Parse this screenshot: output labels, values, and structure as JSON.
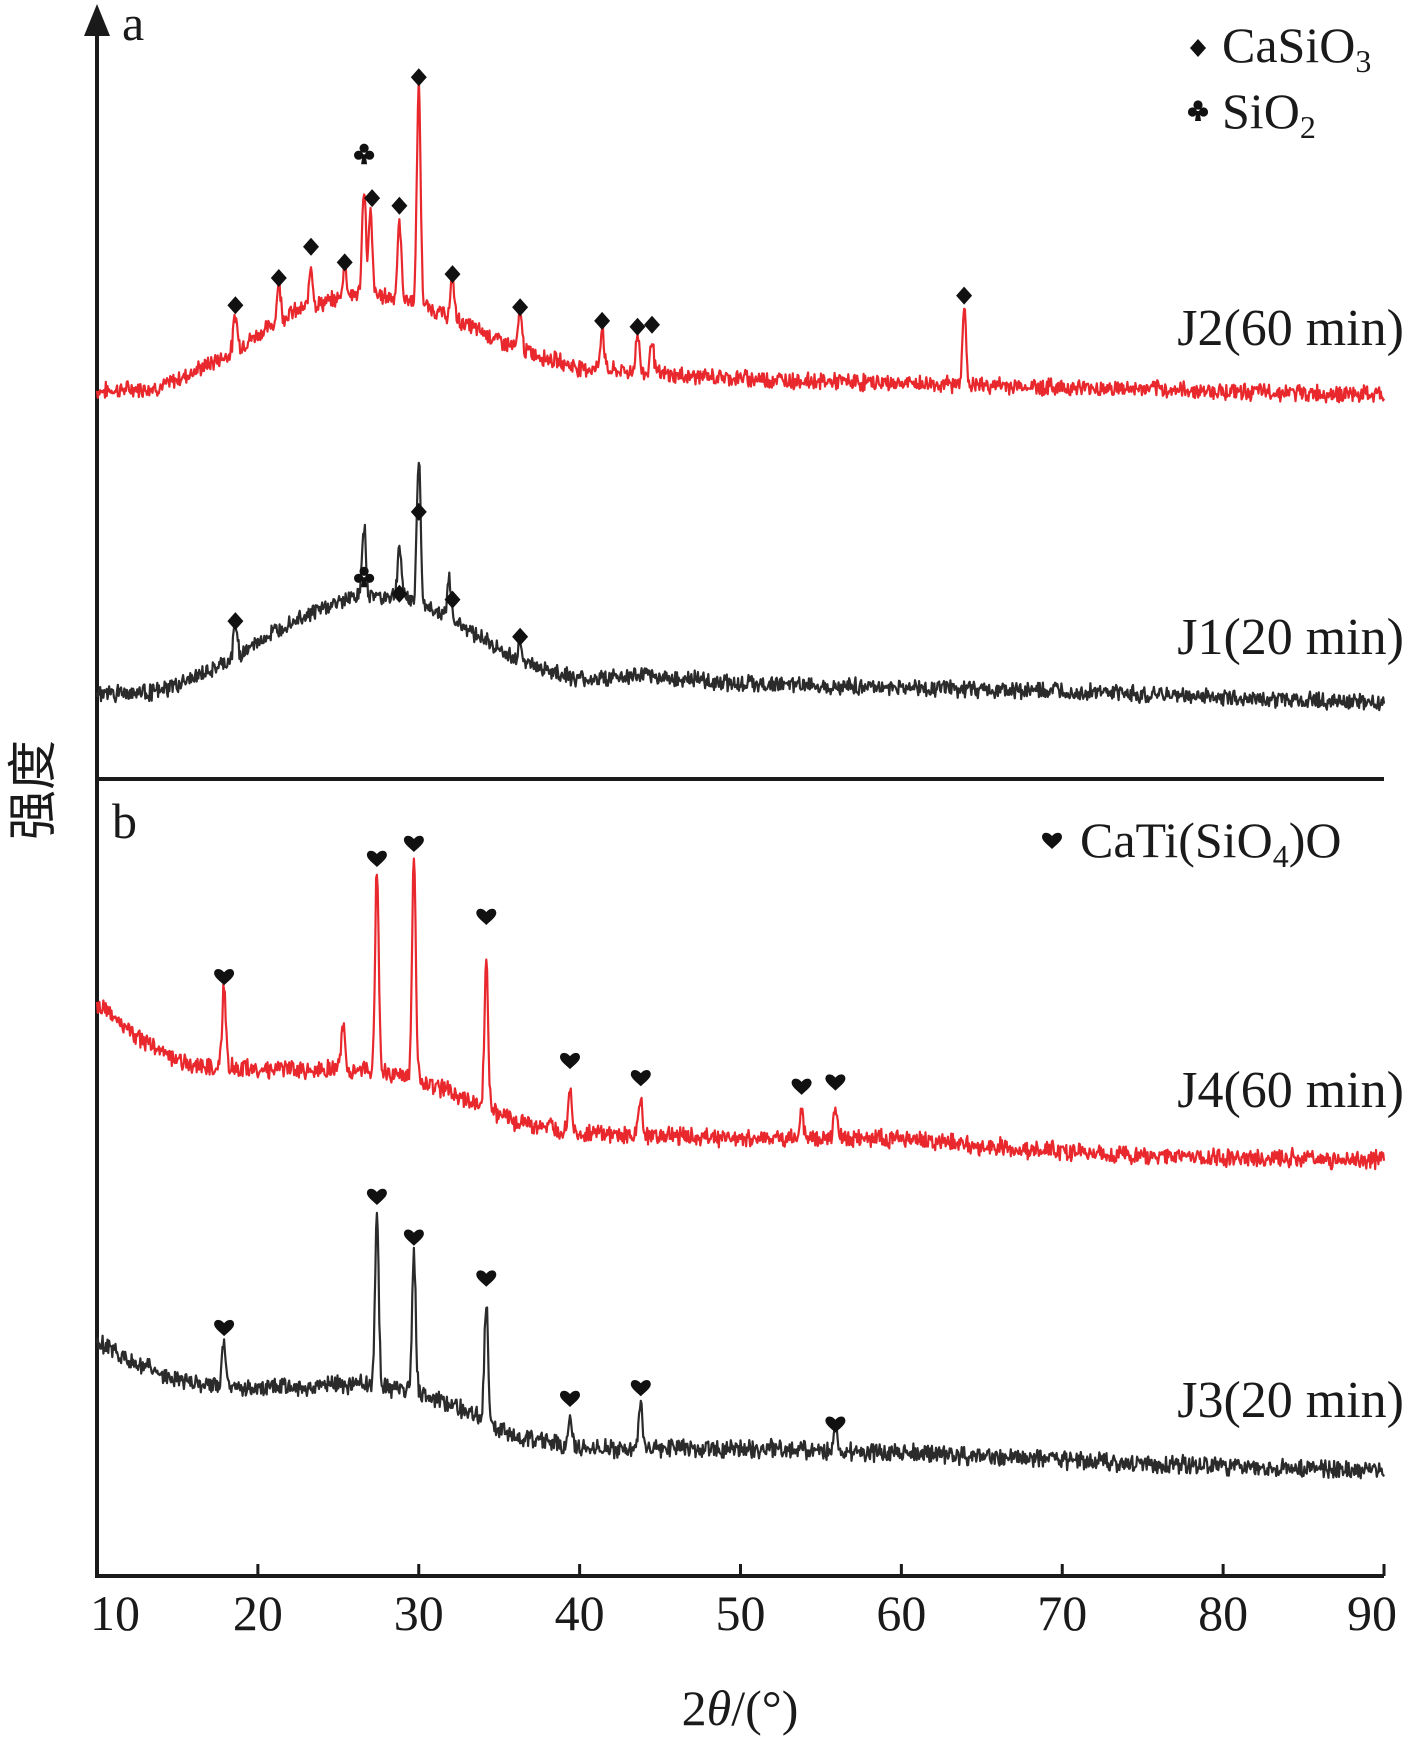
{
  "colors": {
    "red_series": "#e8282d",
    "black_series": "#2b2b2b",
    "axis": "#1a1a1a",
    "marker": "#111111"
  },
  "marker_icons": {
    "CaSiO3": "diamond-icon",
    "SiO2": "club-icon",
    "CaTi(SiO4)O": "heart-icon"
  },
  "chart_data": {
    "type": "line",
    "xlabel_parts": {
      "prefix": "2",
      "theta": "θ",
      "suffix": "/(°)"
    },
    "ylabel": "强度",
    "xlim": [
      10,
      90
    ],
    "xticks": [
      "10",
      "20",
      "30",
      "40",
      "50",
      "60",
      "70",
      "80",
      "90"
    ],
    "y_ticks_shown": false,
    "panels": [
      {
        "label": "a",
        "legend": [
          {
            "marker": "diamond",
            "base": "CaSiO",
            "sub": "3"
          },
          {
            "marker": "club",
            "base": "SiO",
            "sub": "2"
          }
        ],
        "series": [
          {
            "name": "J2(60 min)",
            "color": "red",
            "offset": 1.15,
            "background": [
              [
                10,
                0.02
              ],
              [
                14,
                0.04
              ],
              [
                18,
                0.2
              ],
              [
                22,
                0.42
              ],
              [
                26,
                0.52
              ],
              [
                29,
                0.5
              ],
              [
                32,
                0.4
              ],
              [
                36,
                0.24
              ],
              [
                40,
                0.14
              ],
              [
                46,
                0.1
              ],
              [
                55,
                0.07
              ],
              [
                70,
                0.04
              ],
              [
                90,
                0.0
              ]
            ],
            "peaks": [
              {
                "x": 18.6,
                "h": 0.18
              },
              {
                "x": 21.3,
                "h": 0.2
              },
              {
                "x": 23.3,
                "h": 0.22
              },
              {
                "x": 25.4,
                "h": 0.17
              },
              {
                "x": 26.6,
                "h": 0.55
              },
              {
                "x": 27.0,
                "h": 0.42
              },
              {
                "x": 28.8,
                "h": 0.38
              },
              {
                "x": 30.0,
                "h": 1.12
              },
              {
                "x": 32.1,
                "h": 0.2
              },
              {
                "x": 36.3,
                "h": 0.2
              },
              {
                "x": 41.4,
                "h": 0.22
              },
              {
                "x": 43.6,
                "h": 0.2
              },
              {
                "x": 44.5,
                "h": 0.18
              },
              {
                "x": 63.9,
                "h": 0.4
              }
            ],
            "markers": [
              {
                "x": 18.6,
                "y": 0.46,
                "m": "diamond"
              },
              {
                "x": 21.3,
                "y": 0.6,
                "m": "diamond"
              },
              {
                "x": 23.3,
                "y": 0.76,
                "m": "diamond"
              },
              {
                "x": 25.4,
                "y": 0.68,
                "m": "diamond"
              },
              {
                "x": 26.6,
                "y": 1.24,
                "m": "club"
              },
              {
                "x": 27.1,
                "y": 1.01,
                "m": "diamond"
              },
              {
                "x": 28.8,
                "y": 0.97,
                "m": "diamond"
              },
              {
                "x": 30.0,
                "y": 1.63,
                "m": "diamond"
              },
              {
                "x": 32.1,
                "y": 0.62,
                "m": "diamond"
              },
              {
                "x": 36.3,
                "y": 0.45,
                "m": "diamond"
              },
              {
                "x": 41.4,
                "y": 0.38,
                "m": "diamond"
              },
              {
                "x": 43.6,
                "y": 0.35,
                "m": "diamond"
              },
              {
                "x": 44.5,
                "y": 0.36,
                "m": "diamond"
              },
              {
                "x": 63.9,
                "y": 0.51,
                "m": "diamond"
              }
            ]
          },
          {
            "name": "J1(20 min)",
            "color": "black",
            "offset": 0.0,
            "background": [
              [
                10,
                0.05
              ],
              [
                14,
                0.06
              ],
              [
                18,
                0.2
              ],
              [
                22,
                0.42
              ],
              [
                26,
                0.55
              ],
              [
                29,
                0.55
              ],
              [
                32,
                0.44
              ],
              [
                36,
                0.22
              ],
              [
                40,
                0.12
              ],
              [
                44,
                0.14
              ],
              [
                50,
                0.1
              ],
              [
                60,
                0.08
              ],
              [
                70,
                0.06
              ],
              [
                90,
                0.0
              ]
            ],
            "peaks": [
              {
                "x": 18.6,
                "h": 0.18
              },
              {
                "x": 26.6,
                "h": 0.35
              },
              {
                "x": 28.8,
                "h": 0.25
              },
              {
                "x": 30.0,
                "h": 0.75
              },
              {
                "x": 31.9,
                "h": 0.18
              },
              {
                "x": 36.3,
                "h": 0.12
              }
            ],
            "markers": [
              {
                "x": 18.6,
                "y": 0.42,
                "m": "diamond"
              },
              {
                "x": 26.6,
                "y": 0.65,
                "m": "club"
              },
              {
                "x": 28.8,
                "y": 0.56,
                "m": "diamond"
              },
              {
                "x": 30.0,
                "y": 0.98,
                "m": "diamond"
              },
              {
                "x": 32.1,
                "y": 0.53,
                "m": "diamond"
              },
              {
                "x": 36.3,
                "y": 0.34,
                "m": "diamond"
              }
            ]
          }
        ]
      },
      {
        "label": "b",
        "legend": [
          {
            "marker": "heart",
            "base": "CaTi(SiO",
            "sub": "4",
            "tail": ")O"
          }
        ],
        "series": [
          {
            "name": "J4(60 min)",
            "color": "red",
            "offset": 1.05,
            "background": [
              [
                10,
                0.72
              ],
              [
                12,
                0.6
              ],
              [
                14,
                0.5
              ],
              [
                16,
                0.44
              ],
              [
                20,
                0.42
              ],
              [
                26,
                0.42
              ],
              [
                30,
                0.38
              ],
              [
                34,
                0.25
              ],
              [
                36,
                0.18
              ],
              [
                40,
                0.12
              ],
              [
                50,
                0.1
              ],
              [
                60,
                0.1
              ],
              [
                66,
                0.06
              ],
              [
                75,
                0.02
              ],
              [
                90,
                0.0
              ]
            ],
            "peaks": [
              {
                "x": 17.9,
                "h": 0.38
              },
              {
                "x": 25.3,
                "h": 0.22
              },
              {
                "x": 27.4,
                "h": 0.95
              },
              {
                "x": 29.7,
                "h": 1.02
              },
              {
                "x": 34.2,
                "h": 0.7
              },
              {
                "x": 39.4,
                "h": 0.22
              },
              {
                "x": 43.8,
                "h": 0.18
              },
              {
                "x": 53.8,
                "h": 0.13
              },
              {
                "x": 55.9,
                "h": 0.15
              }
            ],
            "markers": [
              {
                "x": 17.9,
                "y": 0.85,
                "m": "heart"
              },
              {
                "x": 27.4,
                "y": 1.4,
                "m": "heart"
              },
              {
                "x": 29.7,
                "y": 1.47,
                "m": "heart"
              },
              {
                "x": 34.2,
                "y": 1.13,
                "m": "heart"
              },
              {
                "x": 39.4,
                "y": 0.46,
                "m": "heart"
              },
              {
                "x": 43.8,
                "y": 0.38,
                "m": "heart"
              },
              {
                "x": 53.8,
                "y": 0.34,
                "m": "heart"
              },
              {
                "x": 55.9,
                "y": 0.36,
                "m": "heart"
              }
            ]
          },
          {
            "name": "J3(20 min)",
            "color": "black",
            "offset": 0.0,
            "background": [
              [
                10,
                0.6
              ],
              [
                12,
                0.52
              ],
              [
                14,
                0.44
              ],
              [
                16,
                0.4
              ],
              [
                20,
                0.38
              ],
              [
                26,
                0.4
              ],
              [
                30,
                0.36
              ],
              [
                34,
                0.24
              ],
              [
                36,
                0.16
              ],
              [
                40,
                0.1
              ],
              [
                50,
                0.1
              ],
              [
                60,
                0.08
              ],
              [
                66,
                0.06
              ],
              [
                75,
                0.03
              ],
              [
                90,
                0.0
              ]
            ],
            "peaks": [
              {
                "x": 17.9,
                "h": 0.2
              },
              {
                "x": 27.4,
                "h": 0.82
              },
              {
                "x": 29.7,
                "h": 0.64
              },
              {
                "x": 34.2,
                "h": 0.55
              },
              {
                "x": 39.4,
                "h": 0.16
              },
              {
                "x": 43.8,
                "h": 0.22
              },
              {
                "x": 55.9,
                "h": 0.13
              }
            ],
            "markers": [
              {
                "x": 17.9,
                "y": 0.66,
                "m": "heart"
              },
              {
                "x": 27.4,
                "y": 1.27,
                "m": "heart"
              },
              {
                "x": 29.7,
                "y": 1.08,
                "m": "heart"
              },
              {
                "x": 34.2,
                "y": 0.89,
                "m": "heart"
              },
              {
                "x": 39.4,
                "y": 0.33,
                "m": "heart"
              },
              {
                "x": 43.8,
                "y": 0.38,
                "m": "heart"
              },
              {
                "x": 55.9,
                "y": 0.21,
                "m": "heart"
              }
            ]
          }
        ]
      }
    ]
  }
}
